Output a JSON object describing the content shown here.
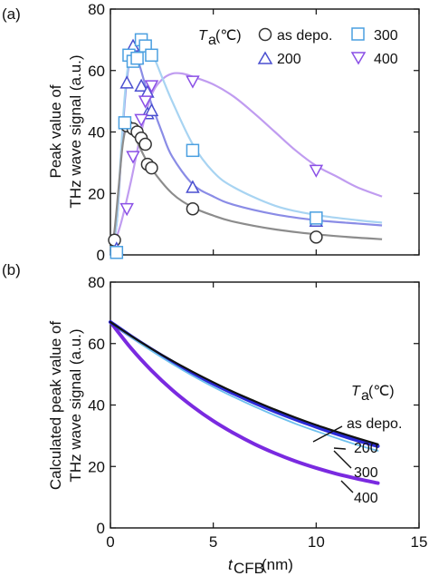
{
  "chart_data": [
    {
      "panel_label": "(a)",
      "type": "scatter",
      "ylabel": [
        "Peak value of",
        "THz wave signal (a.u.)"
      ],
      "xlim": [
        0,
        15
      ],
      "ylim": [
        0,
        80
      ],
      "xticks": [
        "0",
        "5",
        "10",
        "15"
      ],
      "yticks": [
        "0",
        "20",
        "40",
        "60",
        "80"
      ],
      "legend": {
        "title_main": "T",
        "title_sub": "a",
        "title_unit": " (℃)",
        "placement": "top-right",
        "entries": [
          {
            "label": "as depo.",
            "marker": "circle",
            "color": "#333333"
          },
          {
            "label": "300",
            "marker": "square",
            "color": "#4a9fe0"
          },
          {
            "label": "200",
            "marker": "triangle-up",
            "color": "#4a4fd0"
          },
          {
            "label": "400",
            "marker": "triangle-down",
            "color": "#8a4fe6"
          }
        ]
      },
      "series": [
        {
          "name": "as depo.",
          "marker": "circle",
          "color": "#333333",
          "fill": "#ffffff",
          "points": [
            [
              0.2,
              4.8
            ],
            [
              0.8,
              42
            ],
            [
              1.1,
              41
            ],
            [
              1.3,
              40
            ],
            [
              1.5,
              38
            ],
            [
              1.7,
              36
            ],
            [
              1.8,
              29.5
            ],
            [
              2.0,
              28.3
            ],
            [
              4.0,
              15
            ],
            [
              10.0,
              5.8
            ]
          ],
          "fit": {
            "color": "#8c8c8c",
            "points": [
              [
                0.0,
                0.0
              ],
              [
                0.2,
                8
              ],
              [
                0.4,
                22
              ],
              [
                0.6,
                36
              ],
              [
                0.8,
                42
              ],
              [
                1.0,
                41
              ],
              [
                1.5,
                34
              ],
              [
                2.0,
                28
              ],
              [
                3.0,
                20
              ],
              [
                4.0,
                15.5
              ],
              [
                5.0,
                12.8
              ],
              [
                6.0,
                10.8
              ],
              [
                8.0,
                8.3
              ],
              [
                10.0,
                6.7
              ],
              [
                12.0,
                5.6
              ],
              [
                13.2,
                5.1
              ]
            ]
          }
        },
        {
          "name": "200",
          "marker": "triangle-up",
          "color": "#4a4fd0",
          "fill": "#ffffff",
          "points": [
            [
              0.3,
              2
            ],
            [
              0.8,
              56
            ],
            [
              1.1,
              68
            ],
            [
              1.3,
              64
            ],
            [
              1.5,
              55
            ],
            [
              1.8,
              53
            ],
            [
              1.8,
              46
            ],
            [
              2.0,
              47
            ],
            [
              4.0,
              22
            ],
            [
              10.0,
              11
            ]
          ],
          "fit": {
            "color": "#8a8ce6",
            "points": [
              [
                0.0,
                0.0
              ],
              [
                0.3,
                10
              ],
              [
                0.5,
                30
              ],
              [
                0.7,
                50
              ],
              [
                0.9,
                62
              ],
              [
                1.1,
                66
              ],
              [
                1.4,
                62
              ],
              [
                1.8,
                53
              ],
              [
                2.5,
                40
              ],
              [
                3.0,
                32
              ],
              [
                4.0,
                23
              ],
              [
                5.0,
                19
              ],
              [
                6.0,
                16.3
              ],
              [
                8.0,
                13.2
              ],
              [
                10.0,
                11.3
              ],
              [
                12.0,
                10.2
              ],
              [
                13.2,
                9.6
              ]
            ]
          }
        },
        {
          "name": "300",
          "marker": "square",
          "color": "#4a9fe0",
          "fill": "#ffffff",
          "points": [
            [
              0.3,
              0.8
            ],
            [
              0.7,
              43
            ],
            [
              0.9,
              65
            ],
            [
              1.1,
              63
            ],
            [
              1.3,
              64
            ],
            [
              1.5,
              70
            ],
            [
              1.7,
              68
            ],
            [
              2.0,
              65
            ],
            [
              4.0,
              34
            ],
            [
              10.0,
              12
            ]
          ],
          "fit": {
            "color": "#a8d4f2",
            "points": [
              [
                0.0,
                0.0
              ],
              [
                0.3,
                10
              ],
              [
                0.5,
                32
              ],
              [
                0.7,
                52
              ],
              [
                0.9,
                63
              ],
              [
                1.2,
                68
              ],
              [
                1.6,
                69
              ],
              [
                2.0,
                66
              ],
              [
                2.5,
                58
              ],
              [
                3.0,
                50
              ],
              [
                4.0,
                36
              ],
              [
                5.0,
                27
              ],
              [
                6.0,
                22
              ],
              [
                8.0,
                16
              ],
              [
                10.0,
                13
              ],
              [
                12.0,
                11.3
              ],
              [
                13.2,
                10.5
              ]
            ]
          }
        },
        {
          "name": "400",
          "marker": "triangle-down",
          "color": "#8a4fe6",
          "fill": "#ffffff",
          "points": [
            [
              0.8,
              15
            ],
            [
              1.1,
              32
            ],
            [
              1.5,
              44
            ],
            [
              1.7,
              50
            ],
            [
              2.0,
              55
            ],
            [
              4.0,
              56.5
            ],
            [
              10.0,
              27.5
            ]
          ],
          "fit": {
            "color": "#c09cf0",
            "points": [
              [
                0.0,
                0.0
              ],
              [
                0.5,
                10
              ],
              [
                1.0,
                24
              ],
              [
                1.5,
                40
              ],
              [
                2.0,
                52
              ],
              [
                2.5,
                57
              ],
              [
                3.0,
                59
              ],
              [
                3.5,
                59
              ],
              [
                4.0,
                58
              ],
              [
                5.0,
                55.5
              ],
              [
                6.0,
                51.5
              ],
              [
                7.0,
                46
              ],
              [
                8.0,
                40
              ],
              [
                9.0,
                34
              ],
              [
                10.0,
                29
              ],
              [
                11.0,
                25.5
              ],
              [
                12.0,
                22
              ],
              [
                13.2,
                19
              ]
            ]
          }
        }
      ]
    },
    {
      "panel_label": "(b)",
      "type": "line",
      "ylabel": [
        "Calculated peak value of",
        "THz wave signal (a.u.)"
      ],
      "xlabel_main": "t",
      "xlabel_sub": "CFB",
      "xlabel_unit": " (nm)",
      "xlim": [
        0,
        15
      ],
      "ylim": [
        0,
        80
      ],
      "xticks": [
        "0",
        "5",
        "10",
        "15"
      ],
      "yticks": [
        "0",
        "20",
        "40",
        "60",
        "80"
      ],
      "annotation_title": {
        "main": "T",
        "sub": "a",
        "unit": " (℃)"
      },
      "series": [
        {
          "name": "as depo.",
          "color": "#111111",
          "width": 2.2,
          "points": [
            [
              0,
              67
            ],
            [
              1,
              62.5
            ],
            [
              2,
              58.3
            ],
            [
              3,
              54.4
            ],
            [
              4,
              50.8
            ],
            [
              5,
              47.4
            ],
            [
              6,
              44.2
            ],
            [
              7,
              41.3
            ],
            [
              8,
              38.5
            ],
            [
              9,
              35.9
            ],
            [
              10,
              33.5
            ],
            [
              11,
              31.3
            ],
            [
              12,
              29.2
            ],
            [
              13,
              27.2
            ]
          ]
        },
        {
          "name": "200",
          "color": "#2a2ad6",
          "width": 4,
          "points": [
            [
              0,
              67
            ],
            [
              1,
              62.4
            ],
            [
              2,
              58.1
            ],
            [
              3,
              54.1
            ],
            [
              4,
              50.4
            ],
            [
              5,
              46.9
            ],
            [
              6,
              43.7
            ],
            [
              7,
              40.7
            ],
            [
              8,
              37.9
            ],
            [
              9,
              35.3
            ],
            [
              10,
              32.9
            ],
            [
              11,
              30.6
            ],
            [
              12,
              28.5
            ],
            [
              13,
              26.6
            ]
          ]
        },
        {
          "name": "300",
          "color": "#6ec0ee",
          "width": 1.8,
          "points": [
            [
              0,
              67
            ],
            [
              1,
              62.1
            ],
            [
              2,
              57.6
            ],
            [
              3,
              53.4
            ],
            [
              4,
              49.5
            ],
            [
              5,
              45.9
            ],
            [
              6,
              42.6
            ],
            [
              7,
              39.5
            ],
            [
              8,
              36.6
            ],
            [
              9,
              33.9
            ],
            [
              10,
              31.5
            ],
            [
              11,
              29.2
            ],
            [
              12,
              27.0
            ],
            [
              13,
              25.1
            ]
          ]
        },
        {
          "name": "400",
          "color": "#7a2ae0",
          "width": 4,
          "points": [
            [
              0,
              67
            ],
            [
              1,
              58.5
            ],
            [
              2,
              51.2
            ],
            [
              3,
              44.9
            ],
            [
              4,
              39.5
            ],
            [
              5,
              34.8
            ],
            [
              6,
              30.8
            ],
            [
              7,
              27.3
            ],
            [
              8,
              24.3
            ],
            [
              9,
              21.7
            ],
            [
              10,
              19.5
            ],
            [
              11,
              17.6
            ],
            [
              12,
              16.0
            ],
            [
              13,
              14.6
            ]
          ]
        }
      ],
      "labels": [
        {
          "text": "as depo."
        },
        {
          "text": "200"
        },
        {
          "text": "300"
        },
        {
          "text": "400"
        }
      ]
    }
  ]
}
